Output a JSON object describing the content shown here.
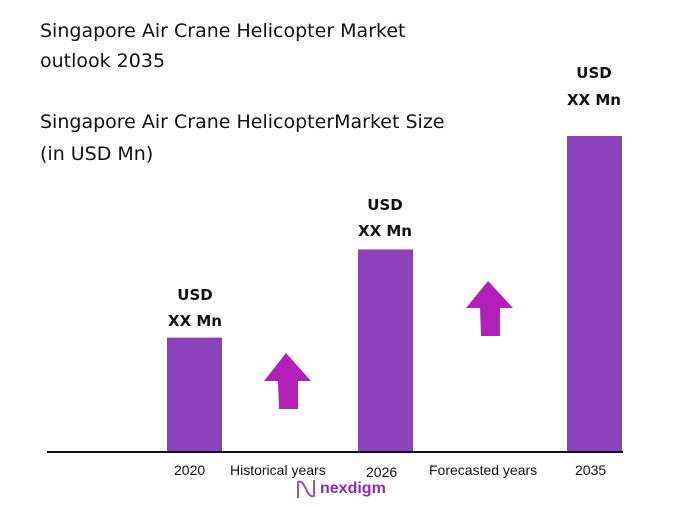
{
  "title_line1": "Singapore Air Crane Helicopter Market",
  "title_line2": "outlook 2035",
  "chart_data": {
    "type": "bar",
    "title": "Singapore Air Crane HelicopterMarket Size",
    "title_line2": "(in USD Mn)",
    "categories": [
      "2020",
      "2026",
      "2035"
    ],
    "relative_values": [
      0.36,
      0.64,
      1.0
    ],
    "data_labels": [
      {
        "line1": "USD",
        "line2": "XX Mn"
      },
      {
        "line1": "USD",
        "line2": "XX Mn"
      },
      {
        "line1": "USD",
        "line2": "XX Mn"
      }
    ],
    "period_labels": [
      "Historical years",
      "Forecasted years"
    ],
    "bar_color": "#8b41ba",
    "arrow_color": "#b320b8",
    "grid": false,
    "legend": "none"
  },
  "brand": "nexdigm"
}
